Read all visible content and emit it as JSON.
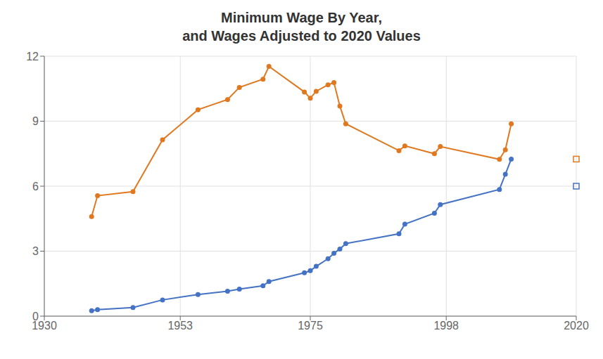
{
  "chart_data": {
    "type": "line",
    "title": "Minimum Wage By Year,\nand Wages Adjusted to 2020 Values",
    "xlim": [
      1930,
      2020
    ],
    "ylim": [
      0,
      12
    ],
    "xticks": [
      1930,
      1953,
      1975,
      1998,
      2020
    ],
    "yticks": [
      0,
      3,
      6,
      9,
      12
    ],
    "grid": true,
    "series": [
      {
        "type": "line",
        "color": "#e07820",
        "marker": "circle",
        "x": [
          1938,
          1939,
          1945,
          1950,
          1956,
          1961,
          1963,
          1967,
          1968,
          1974,
          1975,
          1976,
          1978,
          1979,
          1980,
          1981,
          1990,
          1991,
          1996,
          1997,
          2007,
          2008,
          2009
        ],
        "values": [
          4.6,
          5.56,
          5.75,
          8.14,
          9.53,
          10.0,
          10.56,
          10.94,
          11.53,
          10.35,
          10.06,
          10.38,
          10.68,
          10.78,
          9.7,
          8.88,
          7.64,
          7.86,
          7.5,
          7.83,
          7.24,
          7.68,
          8.88
        ]
      },
      {
        "type": "line",
        "color": "#4472c4",
        "marker": "circle",
        "x": [
          1938,
          1939,
          1945,
          1950,
          1956,
          1961,
          1963,
          1967,
          1968,
          1974,
          1975,
          1976,
          1978,
          1979,
          1980,
          1981,
          1990,
          1991,
          1996,
          1997,
          2007,
          2008,
          2009
        ],
        "values": [
          0.25,
          0.3,
          0.4,
          0.75,
          1.0,
          1.15,
          1.25,
          1.4,
          1.6,
          2.0,
          2.1,
          2.3,
          2.65,
          2.9,
          3.1,
          3.35,
          3.8,
          4.25,
          4.75,
          5.15,
          5.85,
          6.55,
          7.25
        ]
      },
      {
        "type": "scatter",
        "color": "#4472c4",
        "marker": "square",
        "x": [
          2020
        ],
        "values": [
          6.0
        ]
      },
      {
        "type": "scatter",
        "color": "#e07820",
        "marker": "square",
        "x": [
          2020
        ],
        "values": [
          7.25
        ]
      }
    ]
  }
}
